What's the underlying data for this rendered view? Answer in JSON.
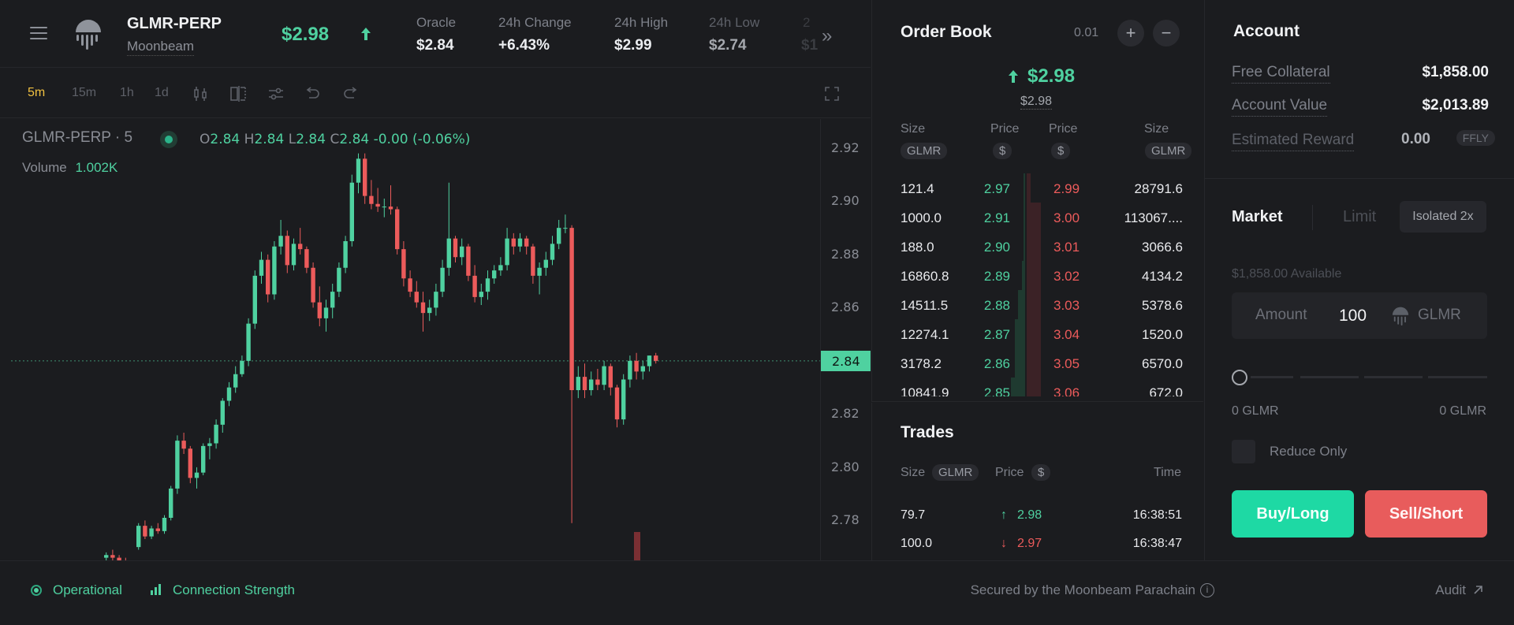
{
  "header": {
    "symbol": "GLMR-PERP",
    "network": "Moonbeam",
    "price": "$2.98",
    "stats": [
      {
        "label": "Oracle",
        "value": "$2.84"
      },
      {
        "label": "24h Change",
        "value": "+6.43%"
      },
      {
        "label": "24h High",
        "value": "$2.99"
      },
      {
        "label": "24h Low",
        "value": "$2.74"
      }
    ],
    "overflow_value": "$1",
    "overflow_label": "2"
  },
  "toolbar": {
    "timeframes": [
      "5m",
      "15m",
      "1h",
      "1d"
    ],
    "active_timeframe": "5m"
  },
  "chart_legend": {
    "title": "GLMR-PERP · 5",
    "o_label": "O",
    "o": "2.84",
    "h_label": "H",
    "h": "2.84",
    "l_label": "L",
    "l": "2.84",
    "c_label": "C",
    "c": "2.84",
    "change": "-0.00 (-0.06%)",
    "volume_label": "Volume",
    "volume_value": "1.002K"
  },
  "chart_data": {
    "type": "candlestick",
    "interval": "5m",
    "y_ticks": [
      "2.92",
      "2.90",
      "2.88",
      "2.86",
      "2.84",
      "2.82",
      "2.80",
      "2.78"
    ],
    "ylim": [
      2.765,
      2.925
    ],
    "current_price_label": "2.84",
    "current_price": 2.84,
    "candles": [
      [
        2.766,
        2.768,
        2.765,
        2.767
      ],
      [
        2.767,
        2.769,
        2.765,
        2.766
      ],
      [
        2.766,
        2.767,
        2.764,
        2.765
      ],
      [
        2.765,
        2.766,
        2.763,
        2.764
      ],
      [
        2.764,
        2.765,
        2.762,
        2.763
      ],
      [
        2.77,
        2.779,
        2.769,
        2.778
      ],
      [
        2.778,
        2.78,
        2.773,
        2.774
      ],
      [
        2.774,
        2.778,
        2.773,
        2.777
      ],
      [
        2.777,
        2.779,
        2.775,
        2.776
      ],
      [
        2.776,
        2.782,
        2.775,
        2.781
      ],
      [
        2.781,
        2.793,
        2.78,
        2.792
      ],
      [
        2.792,
        2.812,
        2.79,
        2.81
      ],
      [
        2.81,
        2.813,
        2.805,
        2.807
      ],
      [
        2.807,
        2.808,
        2.794,
        2.796
      ],
      [
        2.796,
        2.8,
        2.792,
        2.798
      ],
      [
        2.798,
        2.809,
        2.797,
        2.808
      ],
      [
        2.808,
        2.811,
        2.803,
        2.809
      ],
      [
        2.809,
        2.818,
        2.807,
        2.816
      ],
      [
        2.816,
        2.826,
        2.813,
        2.825
      ],
      [
        2.825,
        2.832,
        2.823,
        2.83
      ],
      [
        2.83,
        2.838,
        2.828,
        2.835
      ],
      [
        2.835,
        2.842,
        2.834,
        2.84
      ],
      [
        2.84,
        2.856,
        2.838,
        2.854
      ],
      [
        2.854,
        2.874,
        2.852,
        2.872
      ],
      [
        2.872,
        2.881,
        2.869,
        2.878
      ],
      [
        2.878,
        2.88,
        2.862,
        2.865
      ],
      [
        2.865,
        2.885,
        2.863,
        2.883
      ],
      [
        2.883,
        2.893,
        2.88,
        2.887
      ],
      [
        2.887,
        2.889,
        2.873,
        2.876
      ],
      [
        2.876,
        2.886,
        2.874,
        2.884
      ],
      [
        2.884,
        2.89,
        2.88,
        2.882
      ],
      [
        2.882,
        2.883,
        2.873,
        2.875
      ],
      [
        2.875,
        2.877,
        2.86,
        2.862
      ],
      [
        2.862,
        2.868,
        2.853,
        2.856
      ],
      [
        2.856,
        2.863,
        2.851,
        2.86
      ],
      [
        2.86,
        2.869,
        2.856,
        2.866
      ],
      [
        2.866,
        2.877,
        2.864,
        2.875
      ],
      [
        2.875,
        2.887,
        2.873,
        2.885
      ],
      [
        2.885,
        2.91,
        2.883,
        2.907
      ],
      [
        2.907,
        2.918,
        2.903,
        2.916
      ],
      [
        2.916,
        2.918,
        2.899,
        2.902
      ],
      [
        2.902,
        2.908,
        2.897,
        2.899
      ],
      [
        2.899,
        2.905,
        2.896,
        2.898
      ],
      [
        2.898,
        2.901,
        2.894,
        2.898
      ],
      [
        2.898,
        2.906,
        2.895,
        2.897
      ],
      [
        2.897,
        2.898,
        2.88,
        2.882
      ],
      [
        2.882,
        2.885,
        2.868,
        2.871
      ],
      [
        2.871,
        2.874,
        2.864,
        2.866
      ],
      [
        2.866,
        2.87,
        2.86,
        2.862
      ],
      [
        2.862,
        2.866,
        2.851,
        2.858
      ],
      [
        2.858,
        2.863,
        2.855,
        2.86
      ],
      [
        2.86,
        2.869,
        2.857,
        2.866
      ],
      [
        2.866,
        2.878,
        2.864,
        2.875
      ],
      [
        2.875,
        2.907,
        2.872,
        2.886
      ],
      [
        2.886,
        2.887,
        2.877,
        2.879
      ],
      [
        2.879,
        2.886,
        2.876,
        2.883
      ],
      [
        2.883,
        2.884,
        2.87,
        2.872
      ],
      [
        2.872,
        2.876,
        2.862,
        2.864
      ],
      [
        2.864,
        2.869,
        2.861,
        2.866
      ],
      [
        2.866,
        2.874,
        2.863,
        2.871
      ],
      [
        2.871,
        2.876,
        2.869,
        2.874
      ],
      [
        2.874,
        2.879,
        2.872,
        2.876
      ],
      [
        2.876,
        2.89,
        2.874,
        2.886
      ],
      [
        2.886,
        2.888,
        2.88,
        2.883
      ],
      [
        2.883,
        2.888,
        2.881,
        2.886
      ],
      [
        2.886,
        2.887,
        2.88,
        2.883
      ],
      [
        2.883,
        2.884,
        2.869,
        2.872
      ],
      [
        2.872,
        2.877,
        2.865,
        2.875
      ],
      [
        2.875,
        2.881,
        2.872,
        2.878
      ],
      [
        2.878,
        2.887,
        2.876,
        2.884
      ],
      [
        2.884,
        2.893,
        2.882,
        2.89
      ],
      [
        2.89,
        2.895,
        2.888,
        2.89
      ],
      [
        2.89,
        2.891,
        2.779,
        2.829
      ],
      [
        2.829,
        2.838,
        2.826,
        2.834
      ],
      [
        2.834,
        2.839,
        2.826,
        2.829
      ],
      [
        2.829,
        2.836,
        2.827,
        2.833
      ],
      [
        2.833,
        2.837,
        2.829,
        2.831
      ],
      [
        2.831,
        2.84,
        2.829,
        2.838
      ],
      [
        2.838,
        2.839,
        2.827,
        2.83
      ],
      [
        2.83,
        2.831,
        2.815,
        2.818
      ],
      [
        2.818,
        2.835,
        2.816,
        2.833
      ],
      [
        2.833,
        2.842,
        2.83,
        2.84
      ],
      [
        2.84,
        2.843,
        2.833,
        2.836
      ],
      [
        2.836,
        2.84,
        2.833,
        2.838
      ],
      [
        2.838,
        2.842,
        2.836,
        2.842
      ],
      [
        2.842,
        2.843,
        2.839,
        2.84
      ]
    ]
  },
  "orderbook": {
    "title": "Order Book",
    "tick": "0.01",
    "plus": "+",
    "minus": "−",
    "mid_price": "$2.98",
    "mark_price": "$2.98",
    "headers": {
      "size": "Size",
      "price": "Price",
      "glmr": "GLMR",
      "usd": "$"
    },
    "rows": [
      {
        "bid_size": "121.4",
        "bid_price": "2.97",
        "ask_price": "2.99",
        "ask_size": "28791.6",
        "bid_depth": 0.02,
        "ask_depth": 0.25
      },
      {
        "bid_size": "1000.0",
        "bid_price": "2.91",
        "ask_price": "3.00",
        "ask_size": "113067....",
        "bid_depth": 0.02,
        "ask_depth": 1.0
      },
      {
        "bid_size": "188.0",
        "bid_price": "2.90",
        "ask_price": "3.01",
        "ask_size": "3066.6",
        "bid_depth": 0.02,
        "ask_depth": 1.0
      },
      {
        "bid_size": "16860.8",
        "bid_price": "2.89",
        "ask_price": "3.02",
        "ask_size": "4134.2",
        "bid_depth": 0.25,
        "ask_depth": 1.0
      },
      {
        "bid_size": "14511.5",
        "bid_price": "2.88",
        "ask_price": "3.03",
        "ask_size": "5378.6",
        "bid_depth": 0.5,
        "ask_depth": 1.0
      },
      {
        "bid_size": "12274.1",
        "bid_price": "2.87",
        "ask_price": "3.04",
        "ask_size": "1520.0",
        "bid_depth": 0.7,
        "ask_depth": 1.0
      },
      {
        "bid_size": "3178.2",
        "bid_price": "2.86",
        "ask_price": "3.05",
        "ask_size": "6570.0",
        "bid_depth": 0.75,
        "ask_depth": 1.0
      },
      {
        "bid_size": "10841.9",
        "bid_price": "2.85",
        "ask_price": "3.06",
        "ask_size": "672.0",
        "bid_depth": 1.0,
        "ask_depth": 1.0
      }
    ]
  },
  "trades": {
    "title": "Trades",
    "size_label": "Size",
    "size_unit": "GLMR",
    "price_label": "Price",
    "price_unit": "$",
    "time_label": "Time",
    "rows": [
      {
        "size": "79.7",
        "price": "2.98",
        "time": "16:38:51",
        "side": "up"
      },
      {
        "size": "100.0",
        "price": "2.97",
        "time": "16:38:47",
        "side": "down"
      }
    ]
  },
  "account": {
    "title": "Account",
    "rows": [
      {
        "label": "Free Collateral",
        "value": "$1,858.00"
      },
      {
        "label": "Account Value",
        "value": "$2,013.89"
      },
      {
        "label": "Estimated Reward",
        "value": "0.00",
        "unit": "FFLY"
      }
    ]
  },
  "order_form": {
    "tab_market": "Market",
    "tab_limit": "Limit",
    "leverage": "Isolated 2x",
    "available": "$1,858.00 Available",
    "amount_label": "Amount",
    "amount_value": "100",
    "amount_unit": "GLMR",
    "slider_min": "0 GLMR",
    "slider_max": "0 GLMR",
    "slider_level": 0,
    "reduce_only_label": "Reduce Only",
    "reduce_only_checked": false,
    "buy_label": "Buy/Long",
    "sell_label": "Sell/Short"
  },
  "footer": {
    "status": "Operational",
    "connection": "Connection Strength",
    "secured": "Secured by the Moonbeam Parachain",
    "audit": "Audit"
  },
  "colors": {
    "up": "#4fd1a0",
    "down": "#ec5b5b",
    "buy_button": "#1ed9a4",
    "sell_button": "#e85c5c",
    "accent_timeframe": "#f0c040",
    "background": "#1b1c1f"
  }
}
